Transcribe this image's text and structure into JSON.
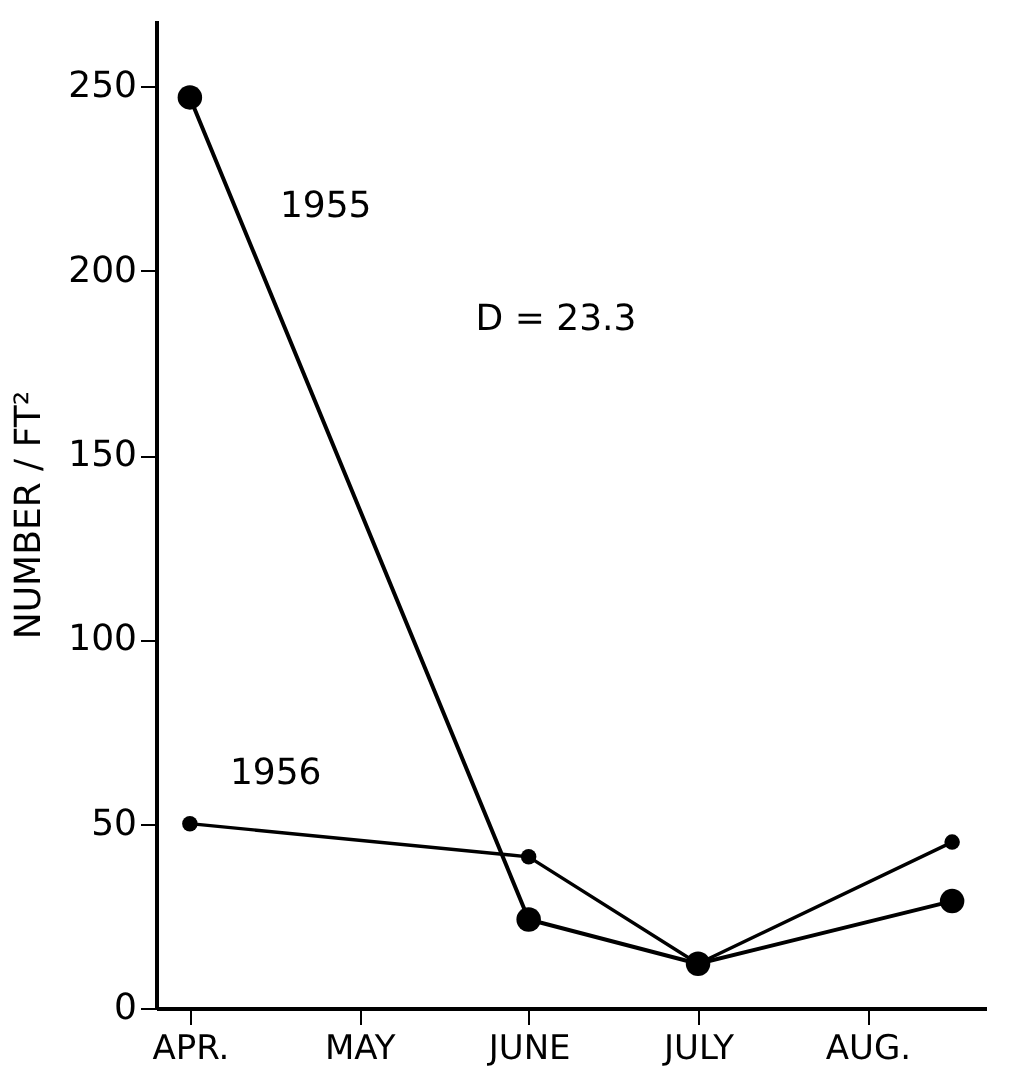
{
  "chart_data": {
    "type": "line",
    "ylabel": "NUMBER / FT²",
    "annotations": [
      "D = 23.3"
    ],
    "categories": [
      "APR.",
      null,
      "MAY",
      null,
      "JUNE",
      null,
      "JULY",
      null,
      "AUG.",
      null
    ],
    "ylim": [
      0,
      268
    ],
    "yticks": [
      0,
      50,
      100,
      150,
      200,
      250
    ],
    "series": [
      {
        "name": "1955",
        "color": "#000000",
        "values": [
          247,
          null,
          null,
          null,
          24,
          null,
          12,
          null,
          null,
          29
        ]
      },
      {
        "name": "1956",
        "color": "#000000",
        "values": [
          50,
          null,
          null,
          null,
          41,
          null,
          12,
          null,
          null,
          45
        ]
      }
    ],
    "marker": "circle",
    "line_style": "solid",
    "grid": false
  }
}
